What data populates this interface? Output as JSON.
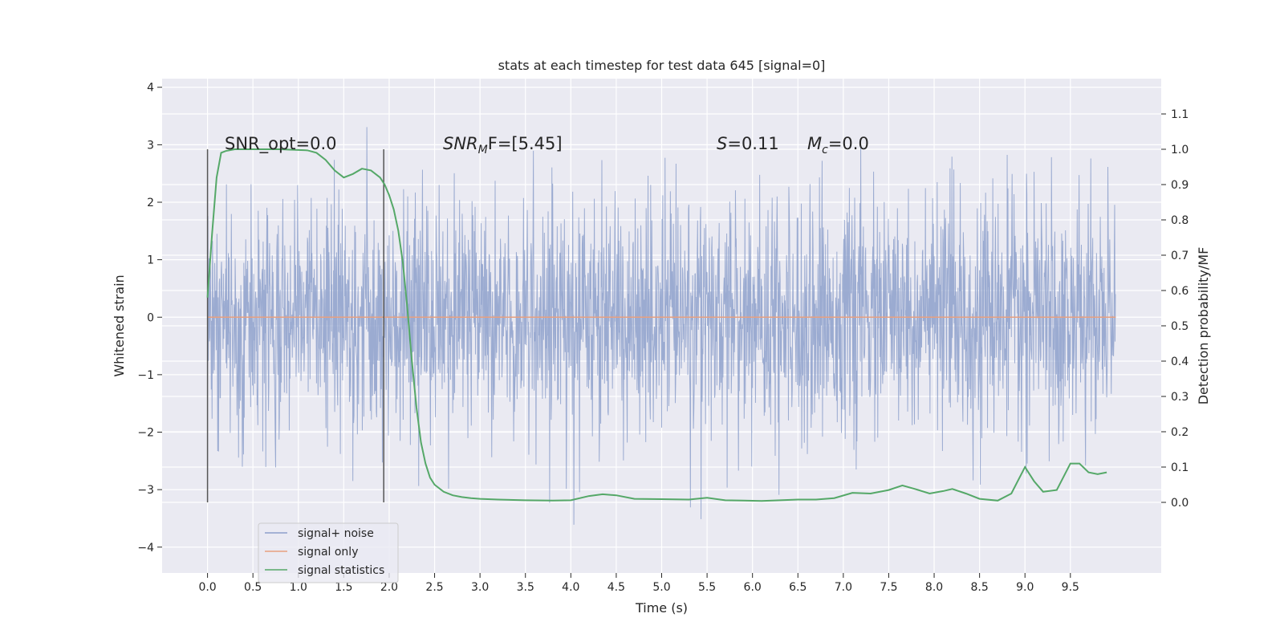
{
  "chart_data": {
    "type": "line",
    "title": "stats at each timestep for test data 645 [signal=0]",
    "xlabel": "Time (s)",
    "ylabel_left": "Whitened strain",
    "ylabel_right": "Detection probability/MF",
    "xlim": [
      -0.5,
      10.5
    ],
    "ylim_left": [
      -4.45,
      4.15
    ],
    "ylim_right": [
      -0.2,
      1.2
    ],
    "x_ticks": [
      "0.0",
      "0.5",
      "1.0",
      "1.5",
      "2.0",
      "2.5",
      "3.0",
      "3.5",
      "4.0",
      "4.5",
      "5.0",
      "5.5",
      "6.0",
      "6.5",
      "7.0",
      "7.5",
      "8.0",
      "8.5",
      "9.0",
      "9.5"
    ],
    "y_left_ticks": [
      "−4",
      "−3",
      "−2",
      "−1",
      "0",
      "1",
      "2",
      "3",
      "4"
    ],
    "y_right_ticks": [
      "0.0",
      "0.1",
      "0.2",
      "0.3",
      "0.4",
      "0.5",
      "0.6",
      "0.7",
      "0.8",
      "0.9",
      "1.0",
      "1.1"
    ],
    "grid": true,
    "legend_position": "lower-left",
    "annotations": {
      "snr_opt": "SNR_opt=0.0",
      "snr_mf_main": "SNR",
      "snr_mf_sub": "M",
      "snr_mf_rest": "F=[5.45]",
      "s_var": "S",
      "s_rest": "=0.11",
      "mc_var": "M",
      "mc_sub": "c",
      "mc_rest": "=0.0"
    },
    "vertical_markers": [
      0.0,
      1.94
    ],
    "series": [
      {
        "name": "signal+ noise",
        "color": "#8da0cb",
        "axis": "left",
        "description_range": [
          -3.0,
          3.0
        ],
        "duration_s": 10.0
      },
      {
        "name": "signal only",
        "color": "#e8a07f",
        "axis": "left",
        "x": [
          0.0,
          10.0
        ],
        "values": [
          0.0,
          0.0
        ]
      },
      {
        "name": "signal statistics",
        "color": "#55a868",
        "axis": "right",
        "x": [
          0.0,
          0.05,
          0.1,
          0.15,
          0.2,
          0.3,
          0.4,
          0.5,
          0.6,
          0.7,
          0.8,
          0.9,
          1.0,
          1.1,
          1.2,
          1.3,
          1.4,
          1.5,
          1.6,
          1.7,
          1.8,
          1.9,
          1.95,
          2.0,
          2.05,
          2.1,
          2.15,
          2.2,
          2.25,
          2.3,
          2.35,
          2.4,
          2.45,
          2.5,
          2.6,
          2.7,
          2.8,
          2.9,
          3.0,
          3.2,
          3.5,
          3.8,
          4.0,
          4.2,
          4.35,
          4.5,
          4.7,
          5.0,
          5.3,
          5.5,
          5.7,
          5.9,
          6.1,
          6.3,
          6.5,
          6.7,
          6.9,
          7.1,
          7.3,
          7.5,
          7.65,
          7.8,
          7.95,
          8.1,
          8.2,
          8.35,
          8.5,
          8.7,
          8.85,
          9.0,
          9.1,
          9.2,
          9.35,
          9.5,
          9.6,
          9.7,
          9.8,
          9.9
        ],
        "values": [
          0.58,
          0.76,
          0.92,
          0.99,
          0.995,
          1.0,
          1.0,
          1.0,
          1.0,
          1.0,
          1.0,
          0.999,
          0.998,
          0.997,
          0.99,
          0.97,
          0.94,
          0.92,
          0.93,
          0.945,
          0.94,
          0.92,
          0.9,
          0.87,
          0.83,
          0.77,
          0.68,
          0.55,
          0.4,
          0.27,
          0.17,
          0.11,
          0.07,
          0.05,
          0.03,
          0.02,
          0.015,
          0.012,
          0.01,
          0.008,
          0.006,
          0.005,
          0.006,
          0.018,
          0.023,
          0.02,
          0.01,
          0.009,
          0.008,
          0.013,
          0.006,
          0.005,
          0.004,
          0.006,
          0.008,
          0.008,
          0.012,
          0.027,
          0.025,
          0.035,
          0.048,
          0.037,
          0.025,
          0.032,
          0.038,
          0.025,
          0.01,
          0.005,
          0.025,
          0.1,
          0.06,
          0.03,
          0.035,
          0.11,
          0.11,
          0.085,
          0.08,
          0.085
        ]
      }
    ]
  }
}
